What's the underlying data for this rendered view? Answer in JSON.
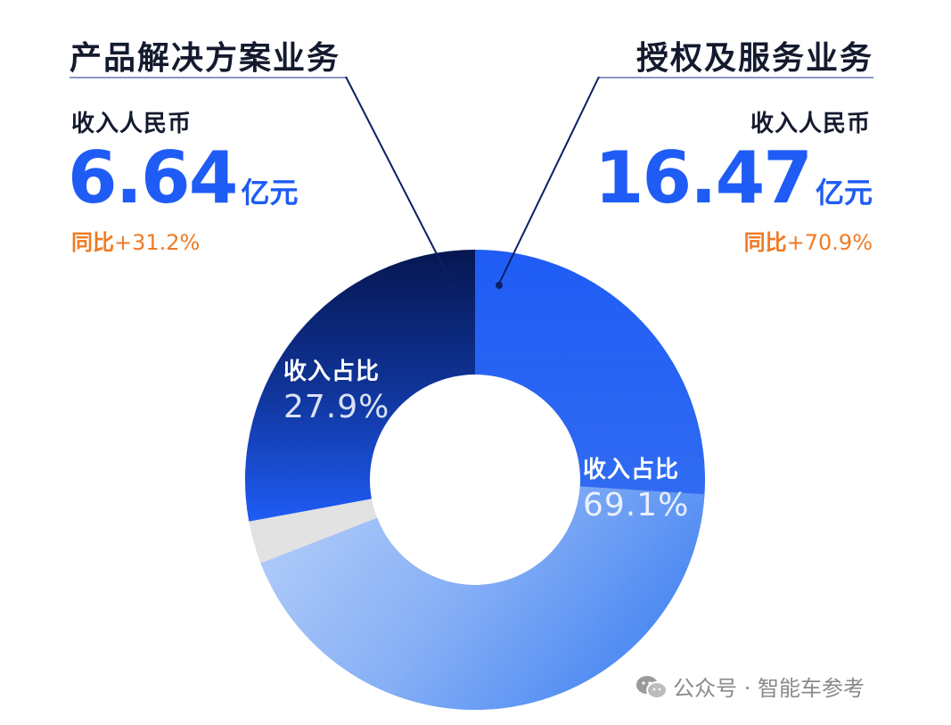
{
  "left": {
    "title": "产品解决方案业务",
    "sub": "收入人民币",
    "value": "6.64",
    "unit": "亿元",
    "yoy_label": "同比",
    "yoy_value": "+31.2%"
  },
  "right": {
    "title": "授权及服务业务",
    "sub": "收入人民币",
    "value": "16.47",
    "unit": "亿元",
    "yoy_label": "同比",
    "yoy_value": "+70.9%"
  },
  "chart_data": {
    "type": "pie",
    "title": "",
    "slices": [
      {
        "name": "授权及服务业务",
        "share": 69.1,
        "label": "收入占比",
        "pct_text": "69.1%",
        "color": "#1f5cf5"
      },
      {
        "name": "",
        "share": 3.0,
        "label": "",
        "pct_text": "",
        "color": "#e2e2e2"
      },
      {
        "name": "产品解决方案业务",
        "share": 27.9,
        "label": "收入占比",
        "pct_text": "27.9%",
        "color": "#0a1f66"
      }
    ]
  },
  "watermark": "公众号 · 智能车参考",
  "colors": {
    "accent": "#1f5cf5",
    "dark": "#0a1f66",
    "orange": "#f07a24"
  }
}
